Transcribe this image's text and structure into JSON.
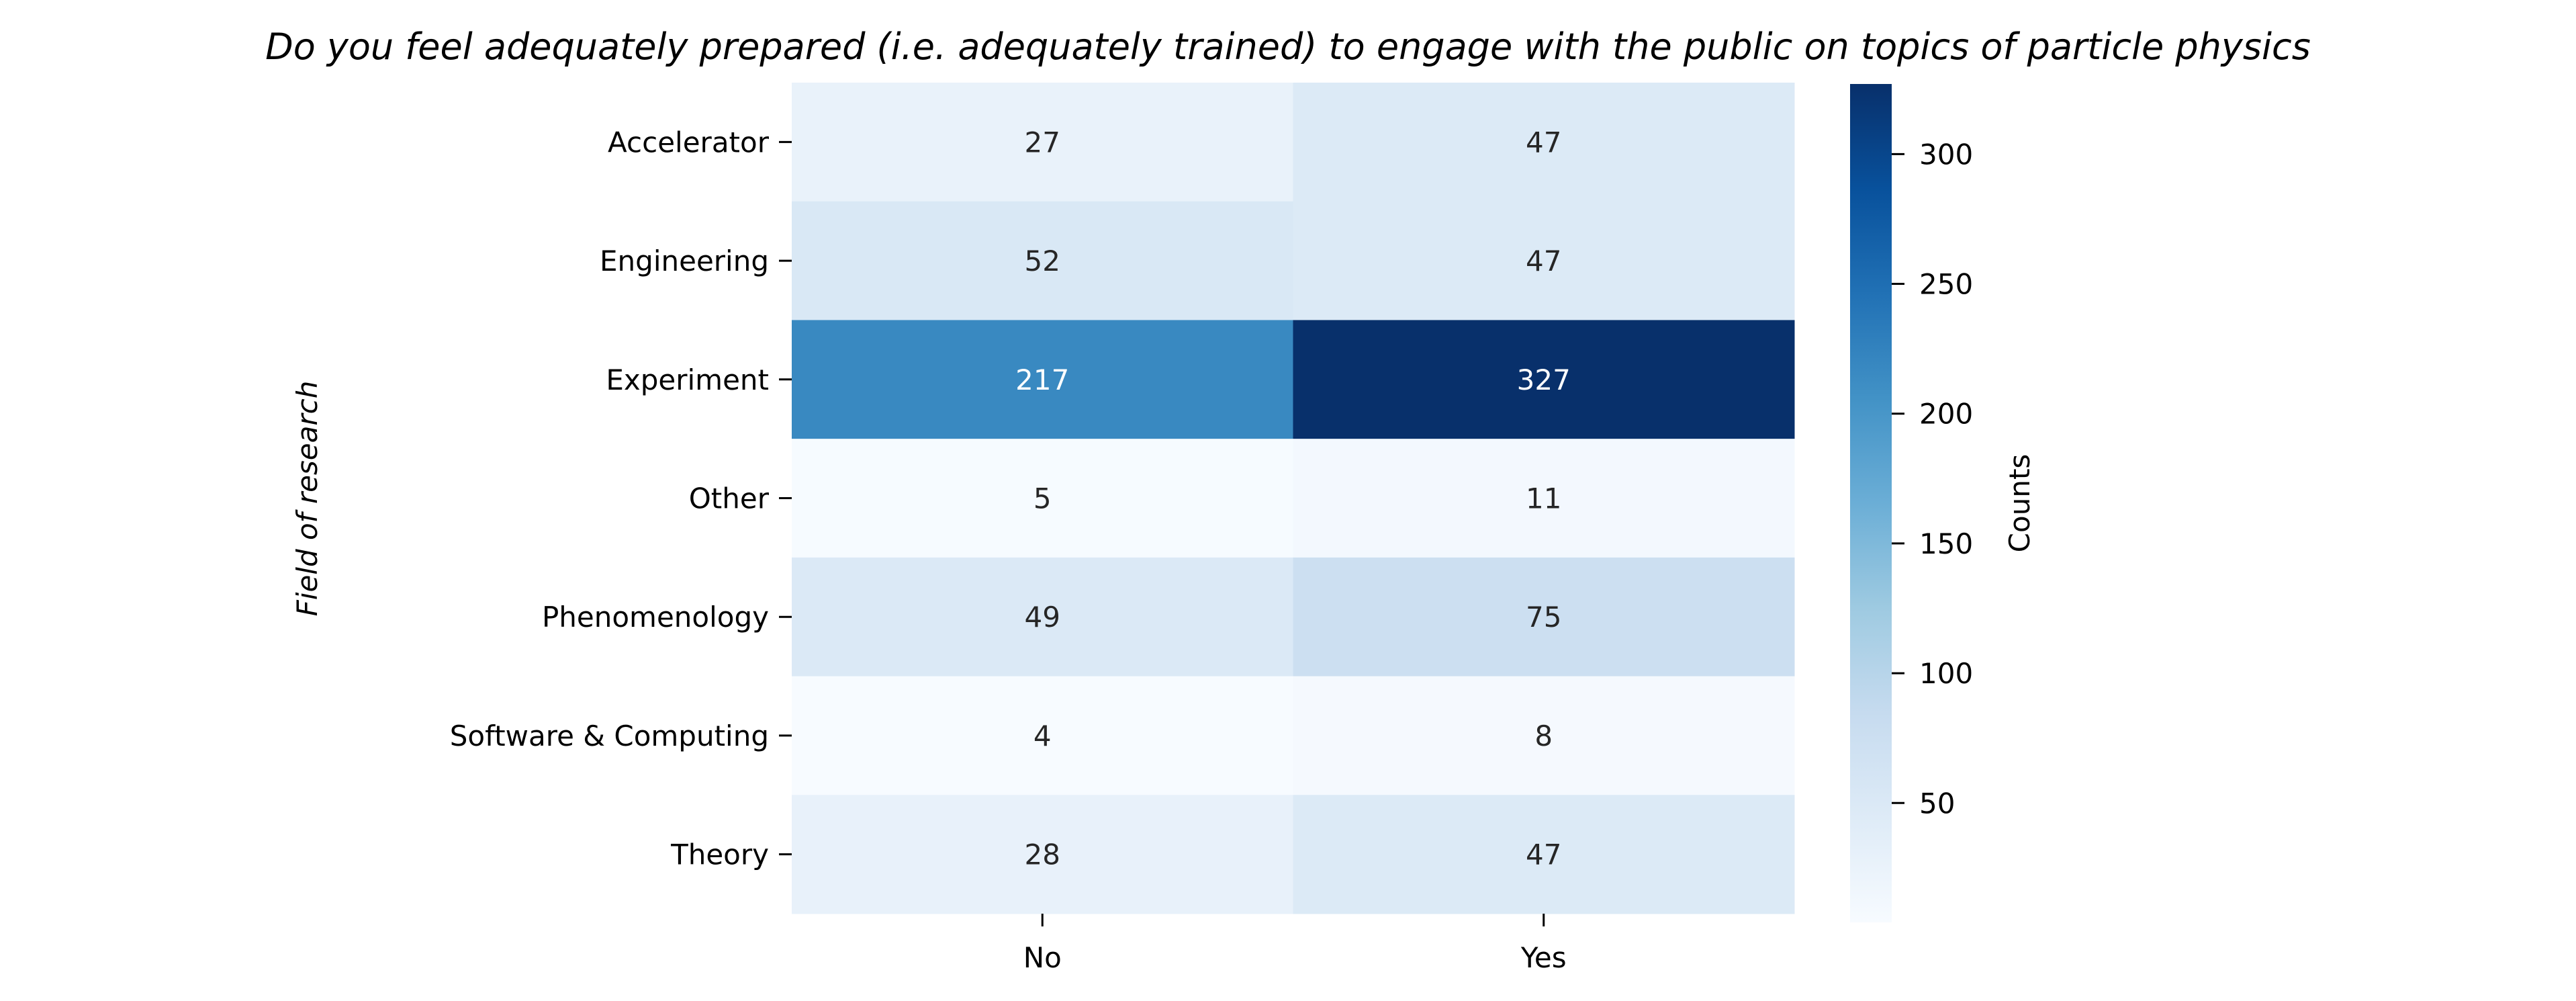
{
  "chart_data": {
    "type": "heatmap",
    "title": "Do you feel adequately prepared (i.e. adequately trained) to engage with the public on topics of particle physics",
    "xlabel": "",
    "ylabel": "Field of research",
    "x_categories": [
      "No",
      "Yes"
    ],
    "y_categories": [
      "Accelerator",
      "Engineering",
      "Experiment",
      "Other",
      "Phenomenology",
      "Software & Computing",
      "Theory"
    ],
    "values": [
      [
        27,
        47
      ],
      [
        52,
        47
      ],
      [
        217,
        327
      ],
      [
        5,
        11
      ],
      [
        49,
        75
      ],
      [
        4,
        8
      ],
      [
        28,
        47
      ]
    ],
    "colormap": "Blues",
    "vmin": 4,
    "vmax": 327,
    "colorbar": {
      "label": "Counts",
      "ticks": [
        50,
        100,
        150,
        200,
        250,
        300
      ]
    },
    "colors": {
      "annot_dark": "#262626",
      "annot_light": "#ffffff"
    }
  }
}
